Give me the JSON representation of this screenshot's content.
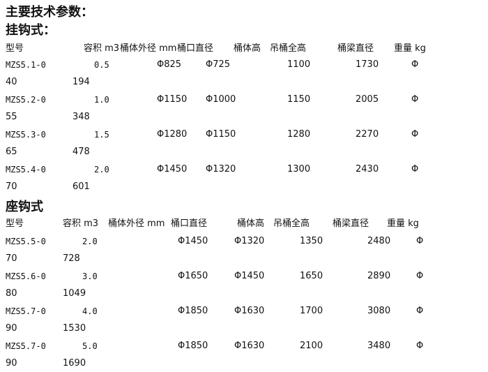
{
  "title": "主要技术参数：",
  "sections": [
    {
      "title": "挂钩式：",
      "headers": [
        "型号",
        "容积 m3",
        "桶体外径 mm",
        "桶口直径",
        "桶体高",
        "吊桶全高",
        "桶梁直径",
        "重量 kg"
      ],
      "rows": [
        {
          "line1": [
            "MZS5.1-0",
            "0.5",
            "Φ825",
            "Φ725",
            "1100",
            "1730",
            "Φ"
          ],
          "line2": [
            "40",
            "194"
          ]
        },
        {
          "line1": [
            "MZS5.2-0",
            "1.0",
            "Φ1150",
            "Φ1000",
            "1150",
            "2005",
            "Φ"
          ],
          "line2": [
            "55",
            "348"
          ]
        },
        {
          "line1": [
            "MZS5.3-0",
            "1.5",
            "Φ1280",
            "Φ1150",
            "1280",
            "2270",
            "Φ"
          ],
          "line2": [
            "65",
            "478"
          ]
        },
        {
          "line1": [
            "MZS5.4-0",
            "2.0",
            "Φ1450",
            "Φ1320",
            "1300",
            "2430",
            "Φ"
          ],
          "line2": [
            "70",
            "601"
          ]
        }
      ]
    },
    {
      "title": "座钩式",
      "headers": [
        "型号",
        "容积 m3",
        "桶体外径 mm",
        "桶口直径",
        "桶体高",
        "吊桶全高",
        "桶梁直径",
        "重量 kg"
      ],
      "rows": [
        {
          "line1": [
            "MZS5.5-0",
            "2.0",
            "Φ1450",
            "Φ1320",
            "1350",
            "2480",
            "Φ"
          ],
          "line2": [
            "70",
            "728"
          ]
        },
        {
          "line1": [
            "MZS5.6-0",
            "3.0",
            "Φ1650",
            "Φ1450",
            "1650",
            "2890",
            "Φ"
          ],
          "line2": [
            "80",
            "1049"
          ]
        },
        {
          "line1": [
            "MZS5.7-0",
            "4.0",
            "Φ1850",
            "Φ1630",
            "1700",
            "3080",
            "Φ"
          ],
          "line2": [
            "90",
            "1530"
          ]
        },
        {
          "line1": [
            "MZS5.7-0",
            "5.0",
            "Φ1850",
            "Φ1630",
            "2100",
            "3480",
            "Φ"
          ],
          "line2": [
            "90",
            "1690"
          ]
        }
      ]
    }
  ]
}
